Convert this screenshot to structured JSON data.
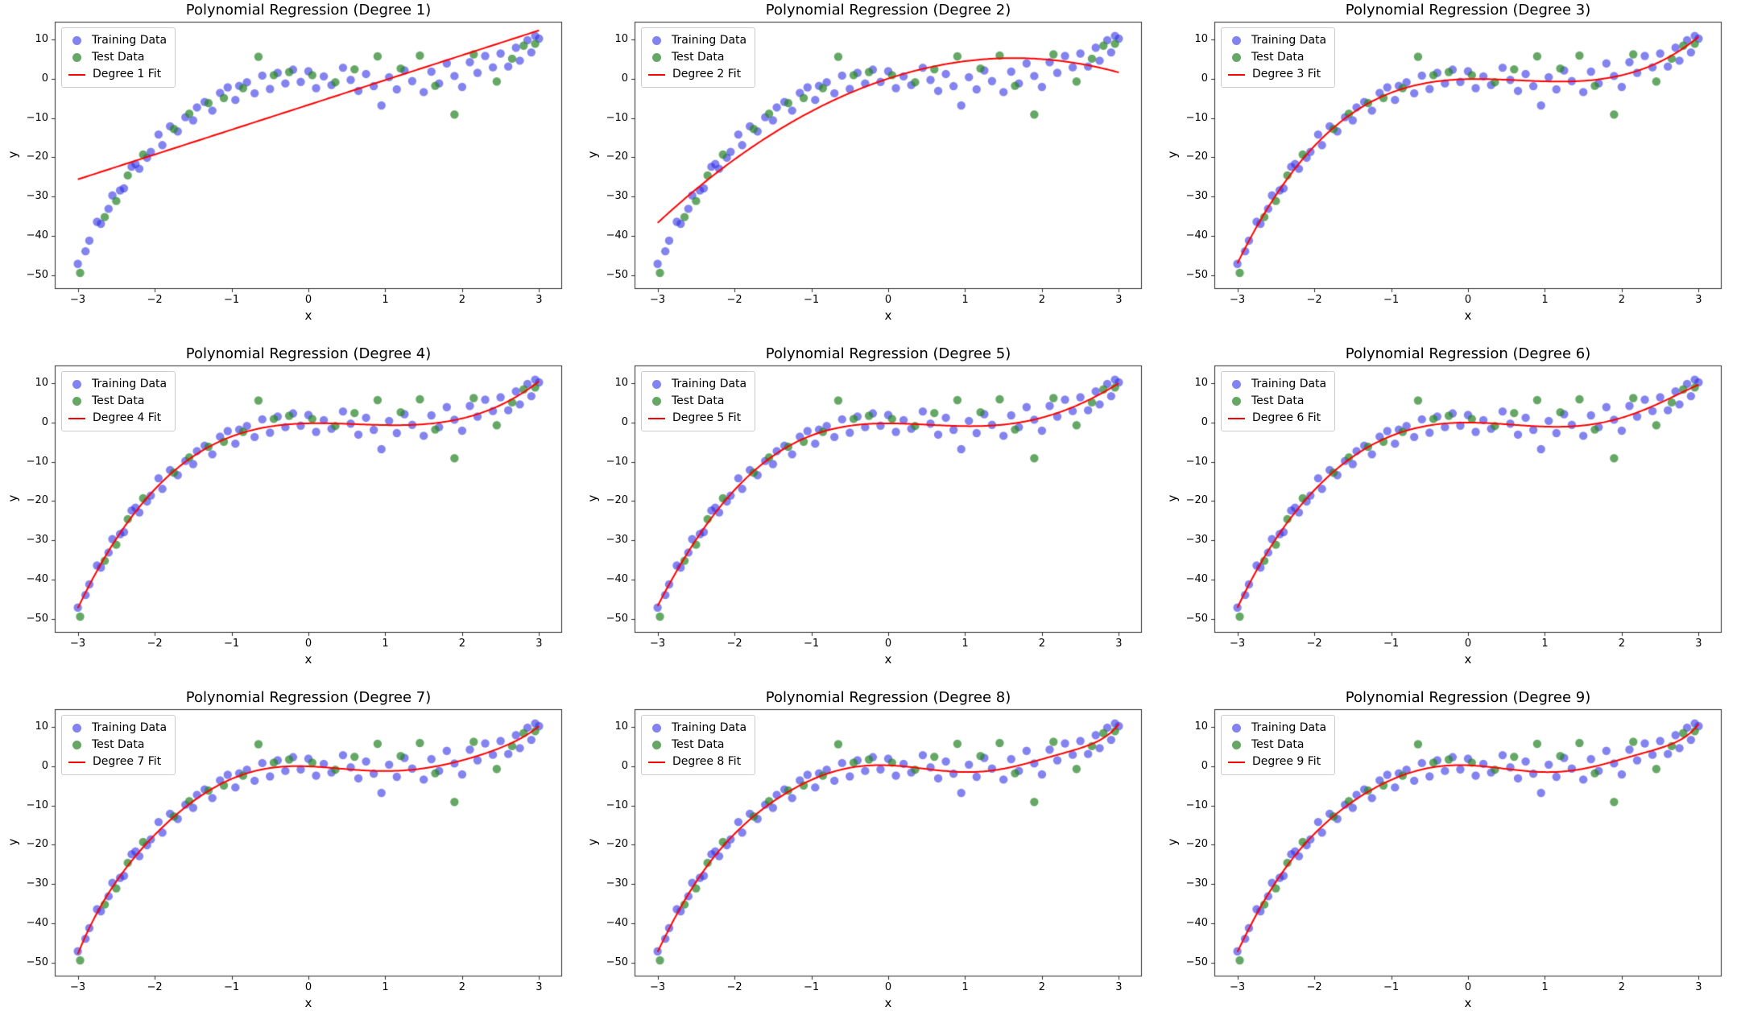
{
  "figure": {
    "background": "#ffffff",
    "rows": 3,
    "cols": 3
  },
  "chart_data": {
    "type": "scatter",
    "xlabel": "x",
    "ylabel": "y",
    "xlim": [
      -3.3,
      3.3
    ],
    "ylim": [
      -53.5,
      14.5
    ],
    "grid": false,
    "legend_position": "upper-left",
    "x_ticks": {
      "values": [
        -3,
        -2,
        -1,
        0,
        1,
        2,
        3
      ],
      "labels": [
        "−3",
        "−2",
        "−1",
        "0",
        "1",
        "2",
        "3"
      ]
    },
    "y_ticks": {
      "values": [
        10,
        0,
        -10,
        -20,
        -30,
        -40,
        -50
      ],
      "labels": [
        "10",
        "0",
        "−10",
        "−20",
        "−30",
        "−40",
        "−50"
      ]
    },
    "legend": {
      "training": "Training Data",
      "test": "Test Data"
    },
    "colors": {
      "training_fill": "rgba(48,48,230,0.60)",
      "test_fill": "rgba(42,134,42,0.72)",
      "fit_line": "#ff0000",
      "spine": "#2b2b2b"
    },
    "training": [
      [
        -3.0,
        -47.1
      ],
      [
        -2.9,
        -43.9
      ],
      [
        -2.85,
        -41.2
      ],
      [
        -2.75,
        -36.4
      ],
      [
        -2.7,
        -36.9
      ],
      [
        -2.6,
        -33.1
      ],
      [
        -2.55,
        -29.7
      ],
      [
        -2.45,
        -28.4
      ],
      [
        -2.4,
        -27.9
      ],
      [
        -2.3,
        -22.4
      ],
      [
        -2.25,
        -21.7
      ],
      [
        -2.2,
        -22.9
      ],
      [
        -2.1,
        -20.1
      ],
      [
        -2.05,
        -18.6
      ],
      [
        -1.95,
        -14.2
      ],
      [
        -1.9,
        -16.9
      ],
      [
        -1.8,
        -12.1
      ],
      [
        -1.7,
        -13.4
      ],
      [
        -1.6,
        -9.8
      ],
      [
        -1.5,
        -10.6
      ],
      [
        -1.45,
        -7.3
      ],
      [
        -1.35,
        -5.9
      ],
      [
        -1.25,
        -8.1
      ],
      [
        -1.15,
        -3.6
      ],
      [
        -1.05,
        -2.2
      ],
      [
        -0.95,
        -5.4
      ],
      [
        -0.9,
        -1.8
      ],
      [
        -0.8,
        -0.9
      ],
      [
        -0.7,
        -3.7
      ],
      [
        -0.6,
        0.8
      ],
      [
        -0.5,
        -2.6
      ],
      [
        -0.4,
        1.5
      ],
      [
        -0.3,
        -1.2
      ],
      [
        -0.2,
        2.3
      ],
      [
        -0.1,
        -0.8
      ],
      [
        0.0,
        1.9
      ],
      [
        0.1,
        -2.4
      ],
      [
        0.2,
        0.6
      ],
      [
        0.3,
        -1.6
      ],
      [
        0.45,
        2.8
      ],
      [
        0.55,
        -0.3
      ],
      [
        0.65,
        -3.1
      ],
      [
        0.75,
        1.2
      ],
      [
        0.85,
        -1.9
      ],
      [
        0.95,
        -6.8
      ],
      [
        1.05,
        0.4
      ],
      [
        1.15,
        -2.7
      ],
      [
        1.25,
        2.1
      ],
      [
        1.35,
        -0.6
      ],
      [
        1.5,
        -3.4
      ],
      [
        1.6,
        1.8
      ],
      [
        1.7,
        -1.2
      ],
      [
        1.8,
        3.9
      ],
      [
        1.9,
        0.7
      ],
      [
        2.0,
        -2.1
      ],
      [
        2.1,
        4.2
      ],
      [
        2.2,
        1.5
      ],
      [
        2.3,
        5.8
      ],
      [
        2.4,
        2.9
      ],
      [
        2.5,
        6.4
      ],
      [
        2.6,
        3.1
      ],
      [
        2.7,
        7.9
      ],
      [
        2.75,
        4.6
      ],
      [
        2.85,
        9.8
      ],
      [
        2.9,
        6.7
      ],
      [
        2.95,
        10.9
      ],
      [
        3.0,
        10.2
      ]
    ],
    "test": [
      [
        -2.97,
        -49.4
      ],
      [
        -2.65,
        -35.2
      ],
      [
        -2.5,
        -31.1
      ],
      [
        -2.35,
        -24.6
      ],
      [
        -2.15,
        -19.3
      ],
      [
        -1.75,
        -12.8
      ],
      [
        -1.55,
        -8.9
      ],
      [
        -1.3,
        -6.2
      ],
      [
        -1.1,
        -4.9
      ],
      [
        -0.85,
        -2.4
      ],
      [
        -0.65,
        5.6
      ],
      [
        -0.45,
        0.9
      ],
      [
        -0.25,
        1.7
      ],
      [
        0.05,
        0.9
      ],
      [
        0.35,
        -0.9
      ],
      [
        0.6,
        2.4
      ],
      [
        0.9,
        5.7
      ],
      [
        1.2,
        2.6
      ],
      [
        1.45,
        5.9
      ],
      [
        1.65,
        -1.8
      ],
      [
        1.9,
        -9.1
      ],
      [
        2.15,
        6.2
      ],
      [
        2.45,
        -0.7
      ],
      [
        2.65,
        5.1
      ],
      [
        2.8,
        8.4
      ],
      [
        2.95,
        8.9
      ]
    ],
    "subplots": [
      {
        "degree": 1,
        "title": "Polynomial Regression (Degree 1)",
        "fit_label": "Degree 1 Fit"
      },
      {
        "degree": 2,
        "title": "Polynomial Regression (Degree 2)",
        "fit_label": "Degree 2 Fit"
      },
      {
        "degree": 3,
        "title": "Polynomial Regression (Degree 3)",
        "fit_label": "Degree 3 Fit"
      },
      {
        "degree": 4,
        "title": "Polynomial Regression (Degree 4)",
        "fit_label": "Degree 4 Fit"
      },
      {
        "degree": 5,
        "title": "Polynomial Regression (Degree 5)",
        "fit_label": "Degree 5 Fit"
      },
      {
        "degree": 6,
        "title": "Polynomial Regression (Degree 6)",
        "fit_label": "Degree 6 Fit"
      },
      {
        "degree": 7,
        "title": "Polynomial Regression (Degree 7)",
        "fit_label": "Degree 7 Fit"
      },
      {
        "degree": 8,
        "title": "Polynomial Regression (Degree 8)",
        "fit_label": "Degree 8 Fit"
      },
      {
        "degree": 9,
        "title": "Polynomial Regression (Degree 9)",
        "fit_label": "Degree 9 Fit"
      }
    ]
  }
}
